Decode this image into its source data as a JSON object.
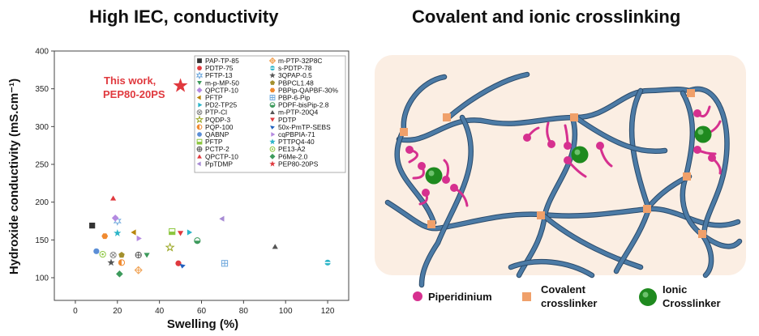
{
  "figure": {
    "left_title": "High IEC, conductivity",
    "right_title": "Covalent and ionic crosslinking"
  },
  "chart_data": {
    "type": "scatter",
    "xlabel": "Swelling (%)",
    "ylabel": "Hydroxide conductivity (mS.cm⁻¹)",
    "xlim": [
      -10,
      130
    ],
    "ylim": [
      70,
      400
    ],
    "xticks": [
      0,
      20,
      40,
      60,
      80,
      100,
      120
    ],
    "yticks": [
      100,
      150,
      200,
      250,
      300,
      350,
      400
    ],
    "annotation": {
      "lines": [
        "This work,",
        "PEP80-20PS"
      ],
      "color": "#e0393e"
    },
    "legend_position": "top-right",
    "series": [
      {
        "name": "PAP-TP-85",
        "marker": "square",
        "color": "#333333",
        "x": 8,
        "y": 169
      },
      {
        "name": "PDTP-75",
        "marker": "circle",
        "color": "#e0393e",
        "x": 49,
        "y": 119
      },
      {
        "name": "PFTP-13",
        "marker": "star6",
        "color": "#6fa8dc",
        "x": 20,
        "y": 175
      },
      {
        "name": "m-p-MP-50",
        "marker": "tri-down",
        "color": "#3d9a5c",
        "x": 34,
        "y": 130
      },
      {
        "name": "QPCTP-10",
        "marker": "diamond",
        "color": "#b48ae0",
        "x": 19,
        "y": 179
      },
      {
        "name": "PFTP",
        "marker": "tri-left",
        "color": "#b8860b",
        "x": 28,
        "y": 160
      },
      {
        "name": "PD2-TP25",
        "marker": "tri-right",
        "color": "#2bb5c8",
        "x": 54,
        "y": 160
      },
      {
        "name": "PTP-Cl",
        "marker": "circle-cross",
        "color": "#888888",
        "x": 18,
        "y": 130
      },
      {
        "name": "PQDP-3",
        "marker": "star-outline",
        "color": "#9aa622",
        "x": 45,
        "y": 140
      },
      {
        "name": "PQP-100",
        "marker": "half-circle",
        "color": "#f08a30",
        "x": 22,
        "y": 120
      },
      {
        "name": "QABNP",
        "marker": "circle",
        "color": "#5b8ed6",
        "x": 10,
        "y": 135
      },
      {
        "name": "PFTP",
        "marker": "square-half",
        "color": "#8cc63f",
        "x": 46,
        "y": 161
      },
      {
        "name": "PCTP-2",
        "marker": "circle-plus",
        "color": "#555555",
        "x": 30,
        "y": 130
      },
      {
        "name": "QPCTP-10",
        "marker": "triangle",
        "color": "#e0393e",
        "x": 18,
        "y": 205
      },
      {
        "name": "PpTDMP",
        "marker": "tri-left",
        "color": "#a78bd4",
        "x": 70,
        "y": 178
      },
      {
        "name": "m-PTP-32P8C",
        "marker": "plus-diamond",
        "color": "#f0a050",
        "x": 30,
        "y": 110
      },
      {
        "name": "s-PDTP-78",
        "marker": "cap",
        "color": "#2bb5c8",
        "x": 120,
        "y": 120
      },
      {
        "name": "3QPAP-0.5",
        "marker": "star",
        "color": "#555555",
        "x": 17,
        "y": 120
      },
      {
        "name": "PBPCL1.48",
        "marker": "pentagon",
        "color": "#a3902e",
        "x": 22,
        "y": 130
      },
      {
        "name": "PBPip-QAPBF-30%",
        "marker": "hexagon",
        "color": "#f08a30",
        "x": 14,
        "y": 155
      },
      {
        "name": "PBP-6-Pip",
        "marker": "square-grid",
        "color": "#6fa8dc",
        "x": 71,
        "y": 119
      },
      {
        "name": "PDPF-bisPip-2.8",
        "marker": "half-circle-g",
        "color": "#3d9a5c",
        "x": 58,
        "y": 149
      },
      {
        "name": "m-PTP-20Q4",
        "marker": "triangle",
        "color": "#555555",
        "x": 95,
        "y": 141
      },
      {
        "name": "PDTP",
        "marker": "tri-down",
        "color": "#e0393e",
        "x": 50,
        "y": 159
      },
      {
        "name": "50x-PmTP-SEBS",
        "marker": "flag",
        "color": "#1f5fbf",
        "x": 51,
        "y": 116
      },
      {
        "name": "cqPBPIA-71",
        "marker": "tri-right",
        "color": "#b48ae0",
        "x": 30,
        "y": 152
      },
      {
        "name": "PTTPQ4-40",
        "marker": "star",
        "color": "#2bb5c8",
        "x": 20,
        "y": 159
      },
      {
        "name": "PE13-A2",
        "marker": "circle-dot",
        "color": "#8cc63f",
        "x": 13,
        "y": 131
      },
      {
        "name": "P6Me-2.0",
        "marker": "diamond",
        "color": "#3d9a5c",
        "x": 21,
        "y": 105
      },
      {
        "name": "PEP80-20PS",
        "marker": "star",
        "color": "#e0393e",
        "x": 50,
        "y": 354
      }
    ]
  },
  "scheme": {
    "key": [
      {
        "name": "piperidinium",
        "label_lines": [
          "Piperidinium"
        ],
        "color": "#d6308f"
      },
      {
        "name": "covalent-crosslinker",
        "label_lines": [
          "Covalent",
          "crosslinker"
        ],
        "color": "#f0a06a"
      },
      {
        "name": "ionic-crosslinker",
        "label_lines": [
          "Ionic",
          "Crosslinker"
        ],
        "color": "#1f8a1f"
      }
    ],
    "colors": {
      "background": "#fbeee3",
      "chain": "#4c7ba6",
      "piperidinium": "#d6308f",
      "covalent": "#f0a06a",
      "ionic": "#1f8a1f"
    }
  }
}
